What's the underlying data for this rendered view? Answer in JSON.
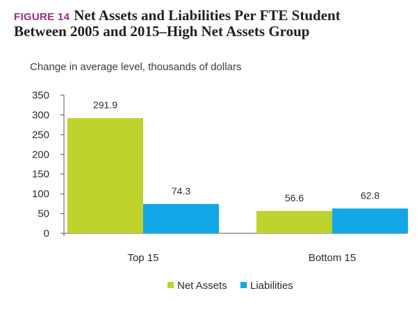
{
  "figure_label": "FIGURE 14",
  "title_line1": "Net Assets and Liabilities Per FTE Student",
  "title_line2": "Between 2005 and 2015–High Net Assets Group",
  "colors": {
    "figure_label": "#9c2a7f",
    "net_assets": "#bfd32f",
    "liabilities": "#12a8e8",
    "axis": "#555555",
    "text": "#2b2b2b"
  },
  "chart_data": {
    "type": "bar",
    "title": "Net Assets and Liabilities Per FTE Student Between 2005 and 2015–High Net Assets Group",
    "subtitle": "Change in average level, thousands of dollars",
    "categories": [
      "Top 15",
      "Bottom 15"
    ],
    "series": [
      {
        "name": "Net Assets",
        "values": [
          291.9,
          56.6
        ],
        "labels": [
          "291.9",
          "56.6"
        ],
        "color": "#bfd32f"
      },
      {
        "name": "Liabilities",
        "values": [
          74.3,
          62.8
        ],
        "labels": [
          "74.3",
          "62.8"
        ],
        "color": "#12a8e8"
      }
    ],
    "ylim": [
      0,
      350
    ],
    "yticks": [
      0,
      50,
      100,
      150,
      200,
      250,
      300,
      350
    ],
    "ytick_labels": [
      "0",
      "50",
      "100",
      "150",
      "200",
      "250",
      "300",
      "350"
    ],
    "grid": false,
    "legend_position": "bottom-center"
  }
}
